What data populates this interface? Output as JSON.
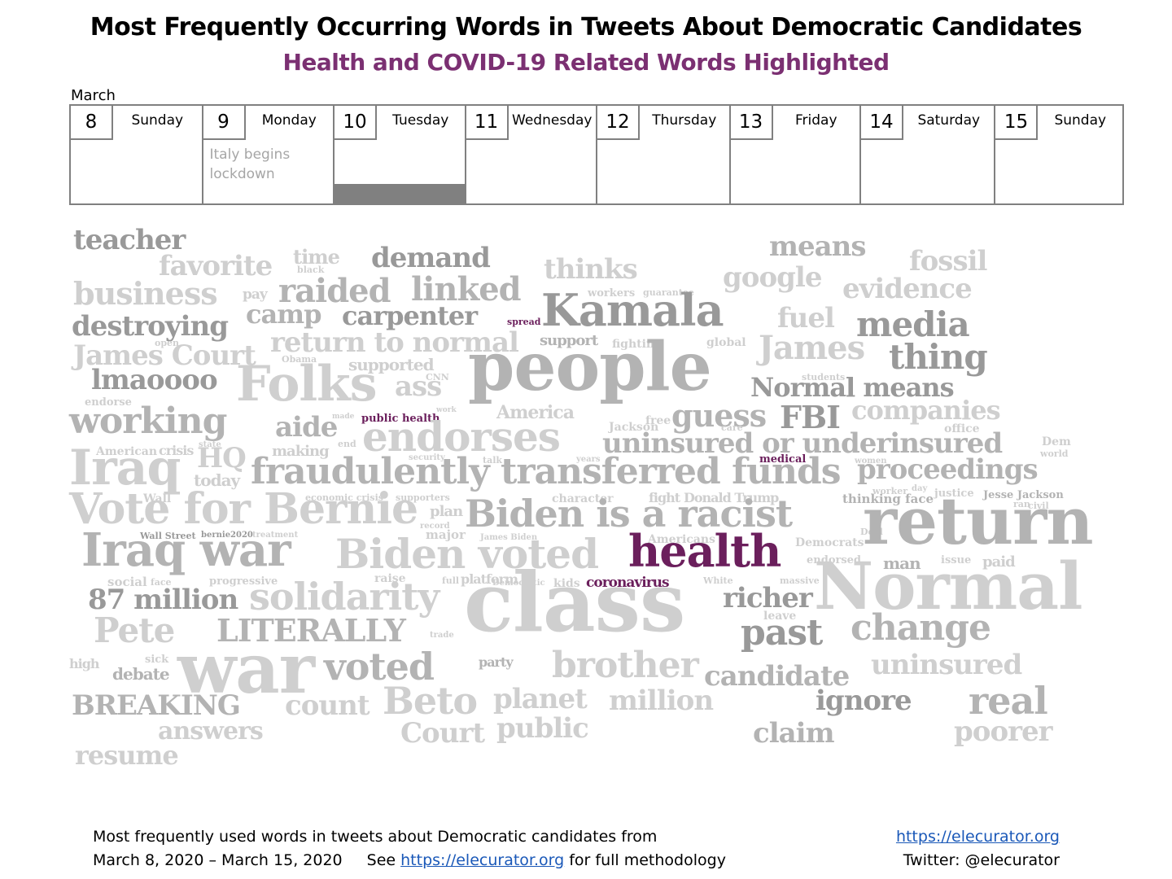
{
  "header": {
    "title": "Most Frequently Occurring Words in Tweets About Democratic Candidates",
    "subtitle": "Health and COVID-19 Related Words Highlighted",
    "month": "March"
  },
  "calendar": [
    {
      "num": "8",
      "name": "Sunday",
      "note": ""
    },
    {
      "num": "9",
      "name": "Monday",
      "note": "Italy begins lockdown"
    },
    {
      "num": "10",
      "name": "Tuesday",
      "note": "",
      "highlight": true
    },
    {
      "num": "11",
      "name": "Wednesday",
      "note": ""
    },
    {
      "num": "12",
      "name": "Thursday",
      "note": ""
    },
    {
      "num": "13",
      "name": "Friday",
      "note": ""
    },
    {
      "num": "14",
      "name": "Saturday",
      "note": ""
    },
    {
      "num": "15",
      "name": "Sunday",
      "note": ""
    }
  ],
  "colors": {
    "highlight": "#6b1f5c",
    "gray_dark": "#999999",
    "gray_mid": "#b3b3b3",
    "gray_light": "#cfcfcf"
  },
  "words": [
    {
      "text": "teacher",
      "weight": 3,
      "shade": "dark"
    },
    {
      "text": "favorite",
      "weight": 3,
      "shade": "light"
    },
    {
      "text": "time",
      "weight": 2,
      "shade": "light"
    },
    {
      "text": "black",
      "weight": 1,
      "shade": "light"
    },
    {
      "text": "demand",
      "weight": 3,
      "shade": "dark"
    },
    {
      "text": "thinks",
      "weight": 3,
      "shade": "light"
    },
    {
      "text": "means",
      "weight": 3,
      "shade": "mid"
    },
    {
      "text": "fossil",
      "weight": 3,
      "shade": "light"
    },
    {
      "text": "business",
      "weight": 4,
      "shade": "light"
    },
    {
      "text": "pay",
      "weight": 1,
      "shade": "light"
    },
    {
      "text": "raided",
      "weight": 4,
      "shade": "mid"
    },
    {
      "text": "linked",
      "weight": 4,
      "shade": "mid"
    },
    {
      "text": "workers",
      "weight": 1,
      "shade": "light"
    },
    {
      "text": "guarantee",
      "weight": 1,
      "shade": "light"
    },
    {
      "text": "google",
      "weight": 3,
      "shade": "light"
    },
    {
      "text": "evidence",
      "weight": 3,
      "shade": "light"
    },
    {
      "text": "destroying",
      "weight": 3,
      "shade": "dark"
    },
    {
      "text": "camp",
      "weight": 3,
      "shade": "mid"
    },
    {
      "text": "carpenter",
      "weight": 3,
      "shade": "dark"
    },
    {
      "text": "spread",
      "weight": 1,
      "shade": "highlight"
    },
    {
      "text": "Kamala",
      "weight": 5,
      "shade": "dark"
    },
    {
      "text": "fuel",
      "weight": 3,
      "shade": "light"
    },
    {
      "text": "media",
      "weight": 4,
      "shade": "dark"
    },
    {
      "text": "open",
      "weight": 1,
      "shade": "light"
    },
    {
      "text": "return to normal",
      "weight": 3,
      "shade": "light"
    },
    {
      "text": "support",
      "weight": 1,
      "shade": "mid"
    },
    {
      "text": "fighting",
      "weight": 1,
      "shade": "light"
    },
    {
      "text": "global",
      "weight": 1,
      "shade": "light"
    },
    {
      "text": "James Court",
      "weight": 3,
      "shade": "light"
    },
    {
      "text": "Obama",
      "weight": 1,
      "shade": "light"
    },
    {
      "text": "supported",
      "weight": 2,
      "shade": "light"
    },
    {
      "text": "James",
      "weight": 4,
      "shade": "light"
    },
    {
      "text": "thing",
      "weight": 4,
      "shade": "dark"
    },
    {
      "text": "people",
      "weight": 7,
      "shade": "mid"
    },
    {
      "text": "CNN",
      "weight": 1,
      "shade": "light"
    },
    {
      "text": "lmaoooo",
      "weight": 3,
      "shade": "dark"
    },
    {
      "text": "Folks",
      "weight": 5,
      "shade": "light"
    },
    {
      "text": "ass",
      "weight": 3,
      "shade": "light"
    },
    {
      "text": "students",
      "weight": 1,
      "shade": "light"
    },
    {
      "text": "Normal means",
      "weight": 3,
      "shade": "dark"
    },
    {
      "text": "endorse",
      "weight": 1,
      "shade": "light"
    },
    {
      "text": "America",
      "weight": 2,
      "shade": "light"
    },
    {
      "text": "guess",
      "weight": 4,
      "shade": "mid"
    },
    {
      "text": "FBI",
      "weight": 4,
      "shade": "dark"
    },
    {
      "text": "companies",
      "weight": 3,
      "shade": "light"
    },
    {
      "text": "working",
      "weight": 4,
      "shade": "mid"
    },
    {
      "text": "aide",
      "weight": 3,
      "shade": "mid"
    },
    {
      "text": "made",
      "weight": 1,
      "shade": "light"
    },
    {
      "text": "public health",
      "weight": 1,
      "shade": "highlight"
    },
    {
      "text": "work",
      "weight": 1,
      "shade": "light"
    },
    {
      "text": "Jackson",
      "weight": 1,
      "shade": "light"
    },
    {
      "text": "free",
      "weight": 1,
      "shade": "light"
    },
    {
      "text": "care",
      "weight": 1,
      "shade": "light"
    },
    {
      "text": "office",
      "weight": 1,
      "shade": "light"
    },
    {
      "text": "endorses",
      "weight": 5,
      "shade": "light"
    },
    {
      "text": "uninsured or underinsured",
      "weight": 3,
      "shade": "mid"
    },
    {
      "text": "Dem",
      "weight": 1,
      "shade": "light"
    },
    {
      "text": "American",
      "weight": 1,
      "shade": "light"
    },
    {
      "text": "crisis",
      "weight": 1,
      "shade": "light"
    },
    {
      "text": "state",
      "weight": 1,
      "shade": "light"
    },
    {
      "text": "making",
      "weight": 2,
      "shade": "light"
    },
    {
      "text": "end",
      "weight": 1,
      "shade": "light"
    },
    {
      "text": "security",
      "weight": 1,
      "shade": "light"
    },
    {
      "text": "talk",
      "weight": 1,
      "shade": "light"
    },
    {
      "text": "years",
      "weight": 1,
      "shade": "light"
    },
    {
      "text": "medical",
      "weight": 1,
      "shade": "highlight"
    },
    {
      "text": "women",
      "weight": 1,
      "shade": "light"
    },
    {
      "text": "world",
      "weight": 1,
      "shade": "light"
    },
    {
      "text": "Iraq",
      "weight": 5,
      "shade": "light"
    },
    {
      "text": "HQ",
      "weight": 3,
      "shade": "light"
    },
    {
      "text": "today",
      "weight": 2,
      "shade": "light"
    },
    {
      "text": "fraudulently transferred funds",
      "weight": 4,
      "shade": "mid"
    },
    {
      "text": "proceedings",
      "weight": 3,
      "shade": "mid"
    },
    {
      "text": "Wall",
      "weight": 1,
      "shade": "light"
    },
    {
      "text": "economic crisis",
      "weight": 1,
      "shade": "light"
    },
    {
      "text": "supporters",
      "weight": 1,
      "shade": "light"
    },
    {
      "text": "character",
      "weight": 1,
      "shade": "light"
    },
    {
      "text": "fight",
      "weight": 1,
      "shade": "light"
    },
    {
      "text": "Donald Trump",
      "weight": 1,
      "shade": "light"
    },
    {
      "text": "thinking face",
      "weight": 1,
      "shade": "mid"
    },
    {
      "text": "worker",
      "weight": 1,
      "shade": "light"
    },
    {
      "text": "day",
      "weight": 1,
      "shade": "light"
    },
    {
      "text": "justice",
      "weight": 1,
      "shade": "light"
    },
    {
      "text": "Jesse Jackson",
      "weight": 1,
      "shade": "mid"
    },
    {
      "text": "ran",
      "weight": 1,
      "shade": "light"
    },
    {
      "text": "civil",
      "weight": 1,
      "shade": "light"
    },
    {
      "text": "Vote for Bernie",
      "weight": 5,
      "shade": "light"
    },
    {
      "text": "plan",
      "weight": 2,
      "shade": "light"
    },
    {
      "text": "record",
      "weight": 1,
      "shade": "light"
    },
    {
      "text": "major",
      "weight": 1,
      "shade": "light"
    },
    {
      "text": "Biden is a racist",
      "weight": 5,
      "shade": "mid"
    },
    {
      "text": "Deal",
      "weight": 1,
      "shade": "light"
    },
    {
      "text": "Democrats",
      "weight": 1,
      "shade": "light"
    },
    {
      "text": "return",
      "weight": 6,
      "shade": "mid"
    },
    {
      "text": "Wall Street",
      "weight": 1,
      "shade": "dark"
    },
    {
      "text": "bernie2020",
      "weight": 1,
      "shade": "dark"
    },
    {
      "text": "treatment",
      "weight": 1,
      "shade": "light"
    },
    {
      "text": "James Biden",
      "weight": 1,
      "shade": "light"
    },
    {
      "text": "Americans",
      "weight": 1,
      "shade": "light"
    },
    {
      "text": "endorsed",
      "weight": 1,
      "shade": "light"
    },
    {
      "text": "Iraq war",
      "weight": 5,
      "shade": "mid"
    },
    {
      "text": "Biden voted",
      "weight": 5,
      "shade": "light"
    },
    {
      "text": "health",
      "weight": 5,
      "shade": "highlight"
    },
    {
      "text": "man",
      "weight": 2,
      "shade": "mid"
    },
    {
      "text": "issue",
      "weight": 1,
      "shade": "light"
    },
    {
      "text": "paid",
      "weight": 2,
      "shade": "light"
    },
    {
      "text": "social",
      "weight": 1,
      "shade": "light"
    },
    {
      "text": "face",
      "weight": 1,
      "shade": "light"
    },
    {
      "text": "progressive",
      "weight": 1,
      "shade": "light"
    },
    {
      "text": "raise",
      "weight": 1,
      "shade": "light"
    },
    {
      "text": "full",
      "weight": 1,
      "shade": "light"
    },
    {
      "text": "platform",
      "weight": 1,
      "shade": "light"
    },
    {
      "text": "kids",
      "weight": 1,
      "shade": "light"
    },
    {
      "text": "coronavirus",
      "weight": 1,
      "shade": "highlight"
    },
    {
      "text": "White",
      "weight": 1,
      "shade": "light"
    },
    {
      "text": "massive",
      "weight": 1,
      "shade": "light"
    },
    {
      "text": "Normal",
      "weight": 6,
      "shade": "light"
    },
    {
      "text": "87 million",
      "weight": 3,
      "shade": "dark"
    },
    {
      "text": "solidarity",
      "weight": 4,
      "shade": "light"
    },
    {
      "text": "Democratic",
      "weight": 1,
      "shade": "light"
    },
    {
      "text": "class",
      "weight": 7,
      "shade": "light"
    },
    {
      "text": "richer",
      "weight": 3,
      "shade": "dark"
    },
    {
      "text": "leave",
      "weight": 1,
      "shade": "light"
    },
    {
      "text": "Pete",
      "weight": 4,
      "shade": "light"
    },
    {
      "text": "LITERALLY",
      "weight": 3,
      "shade": "mid"
    },
    {
      "text": "trade",
      "weight": 1,
      "shade": "light"
    },
    {
      "text": "past",
      "weight": 4,
      "shade": "dark"
    },
    {
      "text": "change",
      "weight": 4,
      "shade": "mid"
    },
    {
      "text": "high",
      "weight": 1,
      "shade": "light"
    },
    {
      "text": "sick",
      "weight": 1,
      "shade": "light"
    },
    {
      "text": "debate",
      "weight": 2,
      "shade": "mid"
    },
    {
      "text": "war",
      "weight": 6,
      "shade": "light"
    },
    {
      "text": "voted",
      "weight": 4,
      "shade": "mid"
    },
    {
      "text": "party",
      "weight": 1,
      "shade": "mid"
    },
    {
      "text": "brother",
      "weight": 4,
      "shade": "light"
    },
    {
      "text": "candidate",
      "weight": 3,
      "shade": "mid"
    },
    {
      "text": "uninsured",
      "weight": 3,
      "shade": "light"
    },
    {
      "text": "BREAKING",
      "weight": 3,
      "shade": "mid"
    },
    {
      "text": "count",
      "weight": 3,
      "shade": "light"
    },
    {
      "text": "Beto",
      "weight": 4,
      "shade": "light"
    },
    {
      "text": "planet",
      "weight": 3,
      "shade": "light"
    },
    {
      "text": "million",
      "weight": 3,
      "shade": "light"
    },
    {
      "text": "ignore",
      "weight": 3,
      "shade": "dark"
    },
    {
      "text": "real",
      "weight": 4,
      "shade": "mid"
    },
    {
      "text": "answers",
      "weight": 2,
      "shade": "light"
    },
    {
      "text": "Court",
      "weight": 3,
      "shade": "light"
    },
    {
      "text": "public",
      "weight": 3,
      "shade": "light"
    },
    {
      "text": "claim",
      "weight": 3,
      "shade": "mid"
    },
    {
      "text": "poorer",
      "weight": 3,
      "shade": "light"
    },
    {
      "text": "resume",
      "weight": 2,
      "shade": "light"
    }
  ],
  "footer": {
    "line1": "Most frequently used words in tweets about Democratic candidates from",
    "line2_dates": "March 8, 2020 – March 15, 2020",
    "line2_see": "See",
    "line2_link": "https://elecurator.org",
    "line2_rest": " for full methodology",
    "right_link": "https://elecurator.org",
    "right_twitter": "Twitter: @elecurator"
  }
}
